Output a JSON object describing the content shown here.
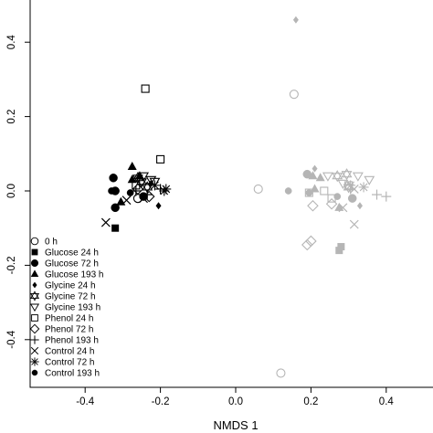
{
  "chart_data": {
    "type": "scatter",
    "title": "",
    "xlabel": "NMDS 1",
    "ylabel": "",
    "xlim": [
      -0.55,
      0.47
    ],
    "ylim": [
      -0.52,
      0.47
    ],
    "grid": false,
    "legend_position": "bottom-left",
    "colors": {
      "dark": "#000000",
      "light": "#b5b5b5"
    },
    "x_ticks": [
      {
        "value": -0.4,
        "label": "-0.4"
      },
      {
        "value": -0.2,
        "label": "-0.2"
      },
      {
        "value": 0.0,
        "label": "0.0"
      },
      {
        "value": 0.2,
        "label": "0.2"
      },
      {
        "value": 0.4,
        "label": "0.4"
      }
    ],
    "y_ticks": [
      {
        "value": -0.4,
        "label": "-0.4"
      },
      {
        "value": -0.2,
        "label": "-0.2"
      },
      {
        "value": 0.0,
        "label": "0.0"
      },
      {
        "value": 0.2,
        "label": "0.2"
      },
      {
        "value": 0.4,
        "label": "0.4"
      }
    ],
    "legend": [
      {
        "label": "0 h",
        "symbol": "open-circle"
      },
      {
        "label": "Glucose 24 h",
        "symbol": "filled-square"
      },
      {
        "label": "Glucose 72 h",
        "symbol": "filled-circle"
      },
      {
        "label": "Glucose 193 h",
        "symbol": "filled-triangle"
      },
      {
        "label": "Glycine 24 h",
        "symbol": "filled-diamond"
      },
      {
        "label": "Glycine 72 h",
        "symbol": "open-star"
      },
      {
        "label": "Glycine 193 h",
        "symbol": "open-triangle-down"
      },
      {
        "label": "Phenol 24 h",
        "symbol": "open-square"
      },
      {
        "label": "Phenol 72 h",
        "symbol": "open-diamond"
      },
      {
        "label": "Phenol 193 h",
        "symbol": "plus"
      },
      {
        "label": "Control 24 h",
        "symbol": "cross"
      },
      {
        "label": "Control 72 h",
        "symbol": "asterisk"
      },
      {
        "label": "Control 193 h",
        "symbol": "filled-circle-small"
      }
    ],
    "series": [
      {
        "name": "0 h",
        "symbol": "open-circle",
        "points": [
          {
            "x": -0.26,
            "y": -0.02,
            "c": "dark"
          },
          {
            "x": 0.06,
            "y": 0.005,
            "c": "light"
          },
          {
            "x": 0.155,
            "y": 0.26,
            "c": "light"
          },
          {
            "x": 0.12,
            "y": -0.49,
            "c": "light"
          }
        ]
      },
      {
        "name": "Glucose 24 h",
        "symbol": "filled-square",
        "points": [
          {
            "x": -0.32,
            "y": -0.1,
            "c": "dark"
          },
          {
            "x": 0.28,
            "y": -0.15,
            "c": "light"
          },
          {
            "x": 0.275,
            "y": -0.16,
            "c": "light"
          }
        ]
      },
      {
        "name": "Glucose 72 h",
        "symbol": "filled-circle",
        "points": [
          {
            "x": -0.325,
            "y": 0.035,
            "c": "dark"
          },
          {
            "x": -0.32,
            "y": -0.045,
            "c": "dark"
          },
          {
            "x": -0.32,
            "y": 0.0,
            "c": "dark"
          },
          {
            "x": -0.245,
            "y": -0.015,
            "c": "dark"
          },
          {
            "x": 0.19,
            "y": 0.045,
            "c": "light"
          },
          {
            "x": 0.31,
            "y": -0.02,
            "c": "light"
          }
        ]
      },
      {
        "name": "Glucose 193 h",
        "symbol": "filled-triangle",
        "points": [
          {
            "x": -0.275,
            "y": 0.065,
            "c": "dark"
          },
          {
            "x": -0.305,
            "y": -0.03,
            "c": "dark"
          },
          {
            "x": -0.275,
            "y": 0.03,
            "c": "dark"
          },
          {
            "x": -0.255,
            "y": 0.04,
            "c": "dark"
          },
          {
            "x": 0.21,
            "y": 0.005,
            "c": "light"
          },
          {
            "x": 0.225,
            "y": 0.035,
            "c": "light"
          },
          {
            "x": 0.275,
            "y": -0.045,
            "c": "light"
          },
          {
            "x": 0.205,
            "y": 0.04,
            "c": "light"
          }
        ]
      },
      {
        "name": "Glycine 24 h",
        "symbol": "filled-diamond",
        "points": [
          {
            "x": -0.205,
            "y": -0.04,
            "c": "dark"
          },
          {
            "x": -0.225,
            "y": 0.02,
            "c": "dark"
          },
          {
            "x": 0.16,
            "y": 0.46,
            "c": "light"
          },
          {
            "x": 0.21,
            "y": 0.06,
            "c": "light"
          },
          {
            "x": 0.33,
            "y": -0.04,
            "c": "light"
          }
        ]
      },
      {
        "name": "Glycine 72 h",
        "symbol": "open-star",
        "points": [
          {
            "x": -0.26,
            "y": 0.035,
            "c": "dark"
          },
          {
            "x": -0.235,
            "y": 0.01,
            "c": "dark"
          },
          {
            "x": -0.25,
            "y": 0.025,
            "c": "dark"
          },
          {
            "x": 0.27,
            "y": 0.04,
            "c": "light"
          },
          {
            "x": 0.295,
            "y": 0.045,
            "c": "light"
          },
          {
            "x": 0.3,
            "y": 0.01,
            "c": "light"
          }
        ]
      },
      {
        "name": "Glycine 193 h",
        "symbol": "open-triangle-down",
        "points": [
          {
            "x": -0.245,
            "y": 0.04,
            "c": "dark"
          },
          {
            "x": -0.225,
            "y": 0.03,
            "c": "dark"
          },
          {
            "x": -0.215,
            "y": 0.025,
            "c": "dark"
          },
          {
            "x": 0.245,
            "y": 0.04,
            "c": "light"
          },
          {
            "x": 0.325,
            "y": 0.04,
            "c": "light"
          },
          {
            "x": 0.355,
            "y": 0.03,
            "c": "light"
          },
          {
            "x": 0.285,
            "y": 0.02,
            "c": "light"
          }
        ]
      },
      {
        "name": "Phenol 24 h",
        "symbol": "open-square",
        "points": [
          {
            "x": -0.24,
            "y": 0.275,
            "c": "dark"
          },
          {
            "x": -0.2,
            "y": 0.085,
            "c": "dark"
          },
          {
            "x": -0.265,
            "y": 0.015,
            "c": "dark"
          },
          {
            "x": 0.235,
            "y": 0.0,
            "c": "light"
          },
          {
            "x": 0.195,
            "y": -0.005,
            "c": "light"
          },
          {
            "x": 0.255,
            "y": -0.02,
            "c": "light"
          },
          {
            "x": 0.3,
            "y": 0.015,
            "c": "light"
          }
        ]
      },
      {
        "name": "Phenol 72 h",
        "symbol": "open-diamond",
        "points": [
          {
            "x": -0.26,
            "y": 0.005,
            "c": "dark"
          },
          {
            "x": -0.23,
            "y": -0.015,
            "c": "dark"
          },
          {
            "x": 0.19,
            "y": -0.145,
            "c": "light"
          },
          {
            "x": 0.2,
            "y": -0.135,
            "c": "light"
          },
          {
            "x": 0.205,
            "y": -0.04,
            "c": "light"
          },
          {
            "x": 0.255,
            "y": -0.035,
            "c": "light"
          }
        ]
      },
      {
        "name": "Phenol 193 h",
        "symbol": "plus",
        "points": [
          {
            "x": -0.235,
            "y": -0.01,
            "c": "dark"
          },
          {
            "x": -0.2,
            "y": 0.005,
            "c": "dark"
          },
          {
            "x": -0.265,
            "y": 0.0,
            "c": "dark"
          },
          {
            "x": 0.375,
            "y": -0.01,
            "c": "light"
          },
          {
            "x": 0.305,
            "y": 0.005,
            "c": "light"
          },
          {
            "x": 0.4,
            "y": -0.015,
            "c": "light"
          }
        ]
      },
      {
        "name": "Control 24 h",
        "symbol": "cross",
        "points": [
          {
            "x": -0.345,
            "y": -0.085,
            "c": "dark"
          },
          {
            "x": -0.29,
            "y": -0.025,
            "c": "dark"
          },
          {
            "x": -0.245,
            "y": -0.02,
            "c": "dark"
          },
          {
            "x": 0.315,
            "y": -0.09,
            "c": "light"
          },
          {
            "x": 0.285,
            "y": -0.045,
            "c": "light"
          },
          {
            "x": 0.315,
            "y": 0.005,
            "c": "light"
          }
        ]
      },
      {
        "name": "Control 72 h",
        "symbol": "asterisk",
        "points": [
          {
            "x": -0.19,
            "y": 0.0,
            "c": "dark"
          },
          {
            "x": -0.215,
            "y": 0.015,
            "c": "dark"
          },
          {
            "x": -0.185,
            "y": 0.005,
            "c": "dark"
          },
          {
            "x": 0.34,
            "y": 0.01,
            "c": "light"
          },
          {
            "x": 0.305,
            "y": 0.015,
            "c": "light"
          }
        ]
      },
      {
        "name": "Control 193 h",
        "symbol": "filled-circle-small",
        "points": [
          {
            "x": -0.33,
            "y": 0.0,
            "c": "dark"
          },
          {
            "x": -0.28,
            "y": -0.005,
            "c": "dark"
          },
          {
            "x": 0.14,
            "y": 0.0,
            "c": "light"
          },
          {
            "x": 0.195,
            "y": -0.005,
            "c": "light"
          },
          {
            "x": 0.27,
            "y": -0.015,
            "c": "light"
          }
        ]
      }
    ]
  }
}
